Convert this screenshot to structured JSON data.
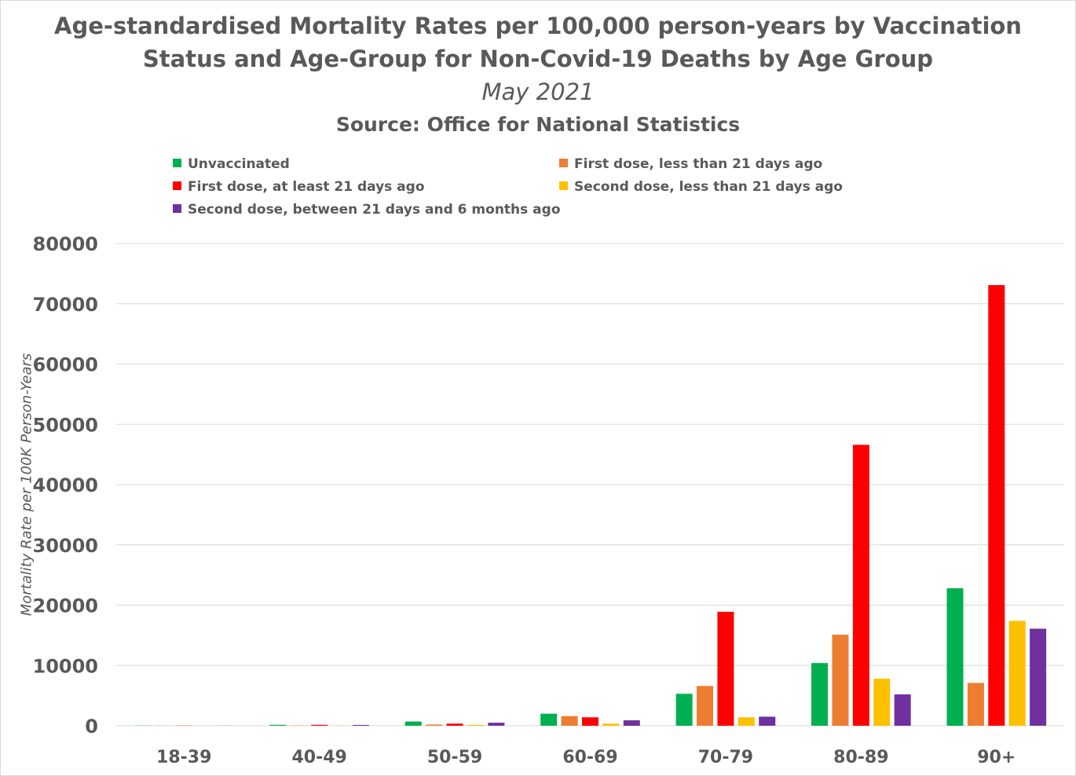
{
  "chart_data": {
    "type": "bar",
    "title": "Age-standardised Mortality Rates per 100,000 person-years by Vaccination Status and Age-Group for Non-Covid-19 Deaths by Age Group",
    "title_line1": "Age-standardised Mortality Rates per 100,000 person-years by Vaccination",
    "title_line2": "Status and Age-Group for Non-Covid-19 Deaths by Age Group",
    "subtitle": "May 2021",
    "source": "Source: Office for National Statistics",
    "xlabel": "",
    "ylabel": "Mortality Rate per 100K Person-Years",
    "ylim": [
      0,
      80000
    ],
    "yticks": [
      0,
      10000,
      20000,
      30000,
      40000,
      50000,
      60000,
      70000,
      80000
    ],
    "grid": true,
    "legend_position": "top",
    "categories": [
      "18-39",
      "40-49",
      "50-59",
      "60-69",
      "70-79",
      "80-89",
      "90+"
    ],
    "series": [
      {
        "name": "Unvaccinated",
        "color": "#00b050",
        "values": [
          30,
          150,
          700,
          2000,
          5300,
          10400,
          22800
        ]
      },
      {
        "name": "First dose, less than 21 days ago",
        "color": "#ed7d31",
        "values": [
          20,
          40,
          200,
          1600,
          6600,
          15100,
          7100
        ]
      },
      {
        "name": "First dose, at least 21 days ago",
        "color": "#ff0000",
        "values": [
          30,
          150,
          350,
          1400,
          18900,
          46600,
          73100
        ]
      },
      {
        "name": "Second dose, less than 21 days ago",
        "color": "#ffc000",
        "values": [
          10,
          30,
          150,
          350,
          1400,
          7800,
          17400
        ]
      },
      {
        "name": "Second dose, between 21 days and 6 months ago",
        "color": "#7030a0",
        "values": [
          20,
          130,
          500,
          900,
          1500,
          5200,
          16100
        ]
      }
    ]
  }
}
